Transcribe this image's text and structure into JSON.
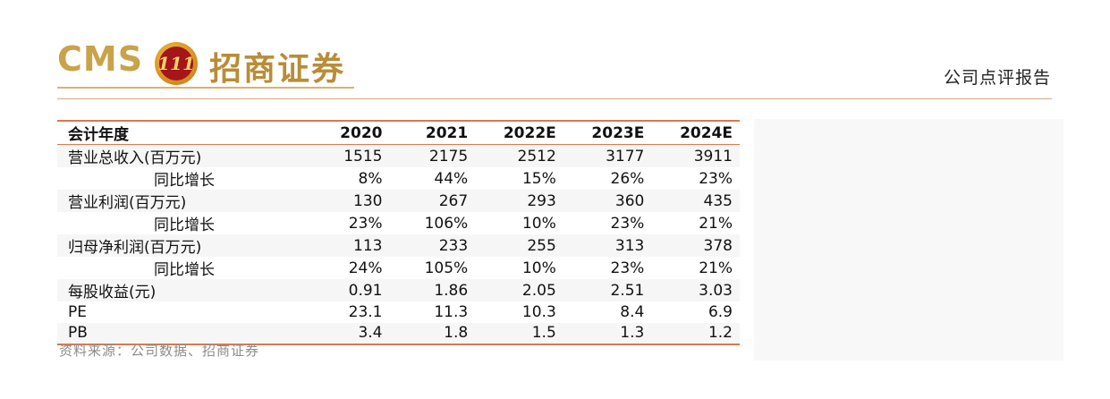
{
  "header": {
    "logo_latin": "CMS",
    "logo_chinese": "招商证券",
    "logo_badge_text": "111",
    "report_type": "公司点评报告"
  },
  "table": {
    "columns": [
      "会计年度",
      "2020",
      "2021",
      "2022E",
      "2023E",
      "2024E"
    ],
    "rows": [
      {
        "label": "营业总收入(百万元)",
        "indent": false,
        "values": [
          "1515",
          "2175",
          "2512",
          "3177",
          "3911"
        ]
      },
      {
        "label": "同比增长",
        "indent": true,
        "values": [
          "8%",
          "44%",
          "15%",
          "26%",
          "23%"
        ]
      },
      {
        "label": "营业利润(百万元)",
        "indent": false,
        "values": [
          "130",
          "267",
          "293",
          "360",
          "435"
        ]
      },
      {
        "label": "同比增长",
        "indent": true,
        "values": [
          "23%",
          "106%",
          "10%",
          "23%",
          "21%"
        ]
      },
      {
        "label": "归母净利润(百万元)",
        "indent": false,
        "values": [
          "113",
          "233",
          "255",
          "313",
          "378"
        ]
      },
      {
        "label": "同比增长",
        "indent": true,
        "values": [
          "24%",
          "105%",
          "10%",
          "23%",
          "21%"
        ]
      },
      {
        "label": "每股收益(元)",
        "indent": false,
        "values": [
          "0.91",
          "1.86",
          "2.05",
          "2.51",
          "3.03"
        ]
      },
      {
        "label": "PE",
        "indent": false,
        "values": [
          "23.1",
          "11.3",
          "10.3",
          "8.4",
          "6.9"
        ]
      },
      {
        "label": "PB",
        "indent": false,
        "values": [
          "3.4",
          "1.8",
          "1.5",
          "1.3",
          "1.2"
        ]
      }
    ]
  },
  "source": "资料来源：公司数据、招商证券",
  "colors": {
    "brand_gold": "#c9a24a",
    "brand_red": "#a4161a",
    "rule_orange": "#d57b4f"
  }
}
